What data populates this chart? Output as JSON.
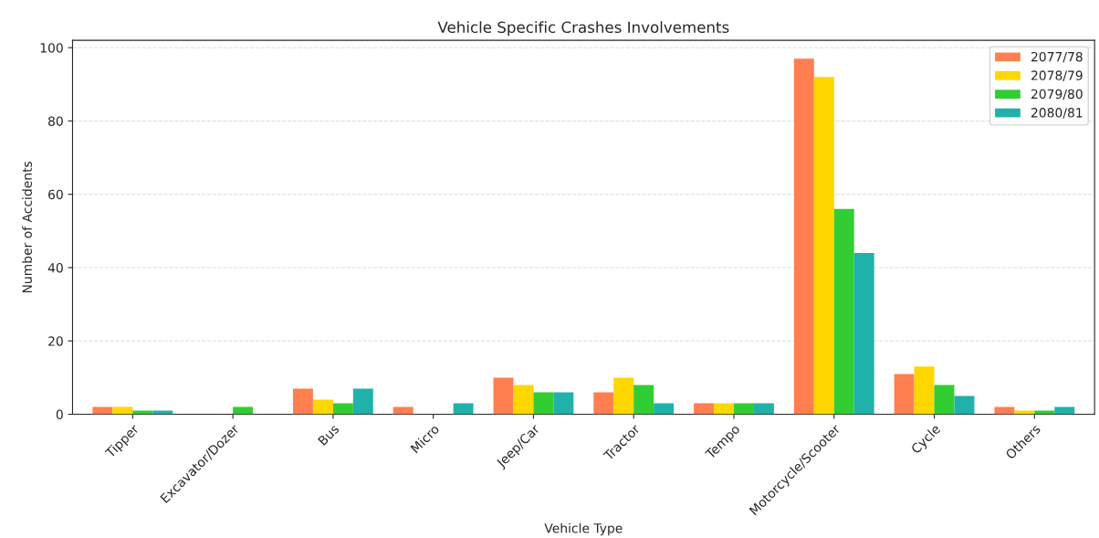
{
  "chart_data": {
    "type": "bar",
    "title": "Vehicle Specific Crashes Involvements",
    "xlabel": "Vehicle Type",
    "ylabel": "Number of Accidents",
    "categories": [
      "Tipper",
      "Excavator/Dozer",
      "Bus",
      "Micro",
      "Jeep/Car",
      "Tractor",
      "Tempo",
      "Motorcycle/Scooter",
      "Cycle",
      "Others"
    ],
    "series": [
      {
        "name": "2077/78",
        "color": "#ff7f50",
        "values": [
          2,
          0,
          7,
          2,
          10,
          6,
          3,
          97,
          11,
          2
        ]
      },
      {
        "name": "2078/79",
        "color": "#ffd700",
        "values": [
          2,
          0,
          4,
          0,
          8,
          10,
          3,
          92,
          13,
          1
        ]
      },
      {
        "name": "2079/80",
        "color": "#32cd32",
        "values": [
          1,
          2,
          3,
          0,
          6,
          8,
          3,
          56,
          8,
          1
        ]
      },
      {
        "name": "2080/81",
        "color": "#20b2aa",
        "values": [
          1,
          0,
          7,
          3,
          6,
          3,
          3,
          44,
          5,
          2
        ]
      }
    ],
    "ylim": [
      0,
      102
    ],
    "yticks": [
      0,
      20,
      40,
      60,
      80,
      100
    ],
    "grid": "y",
    "legend": "top right"
  }
}
